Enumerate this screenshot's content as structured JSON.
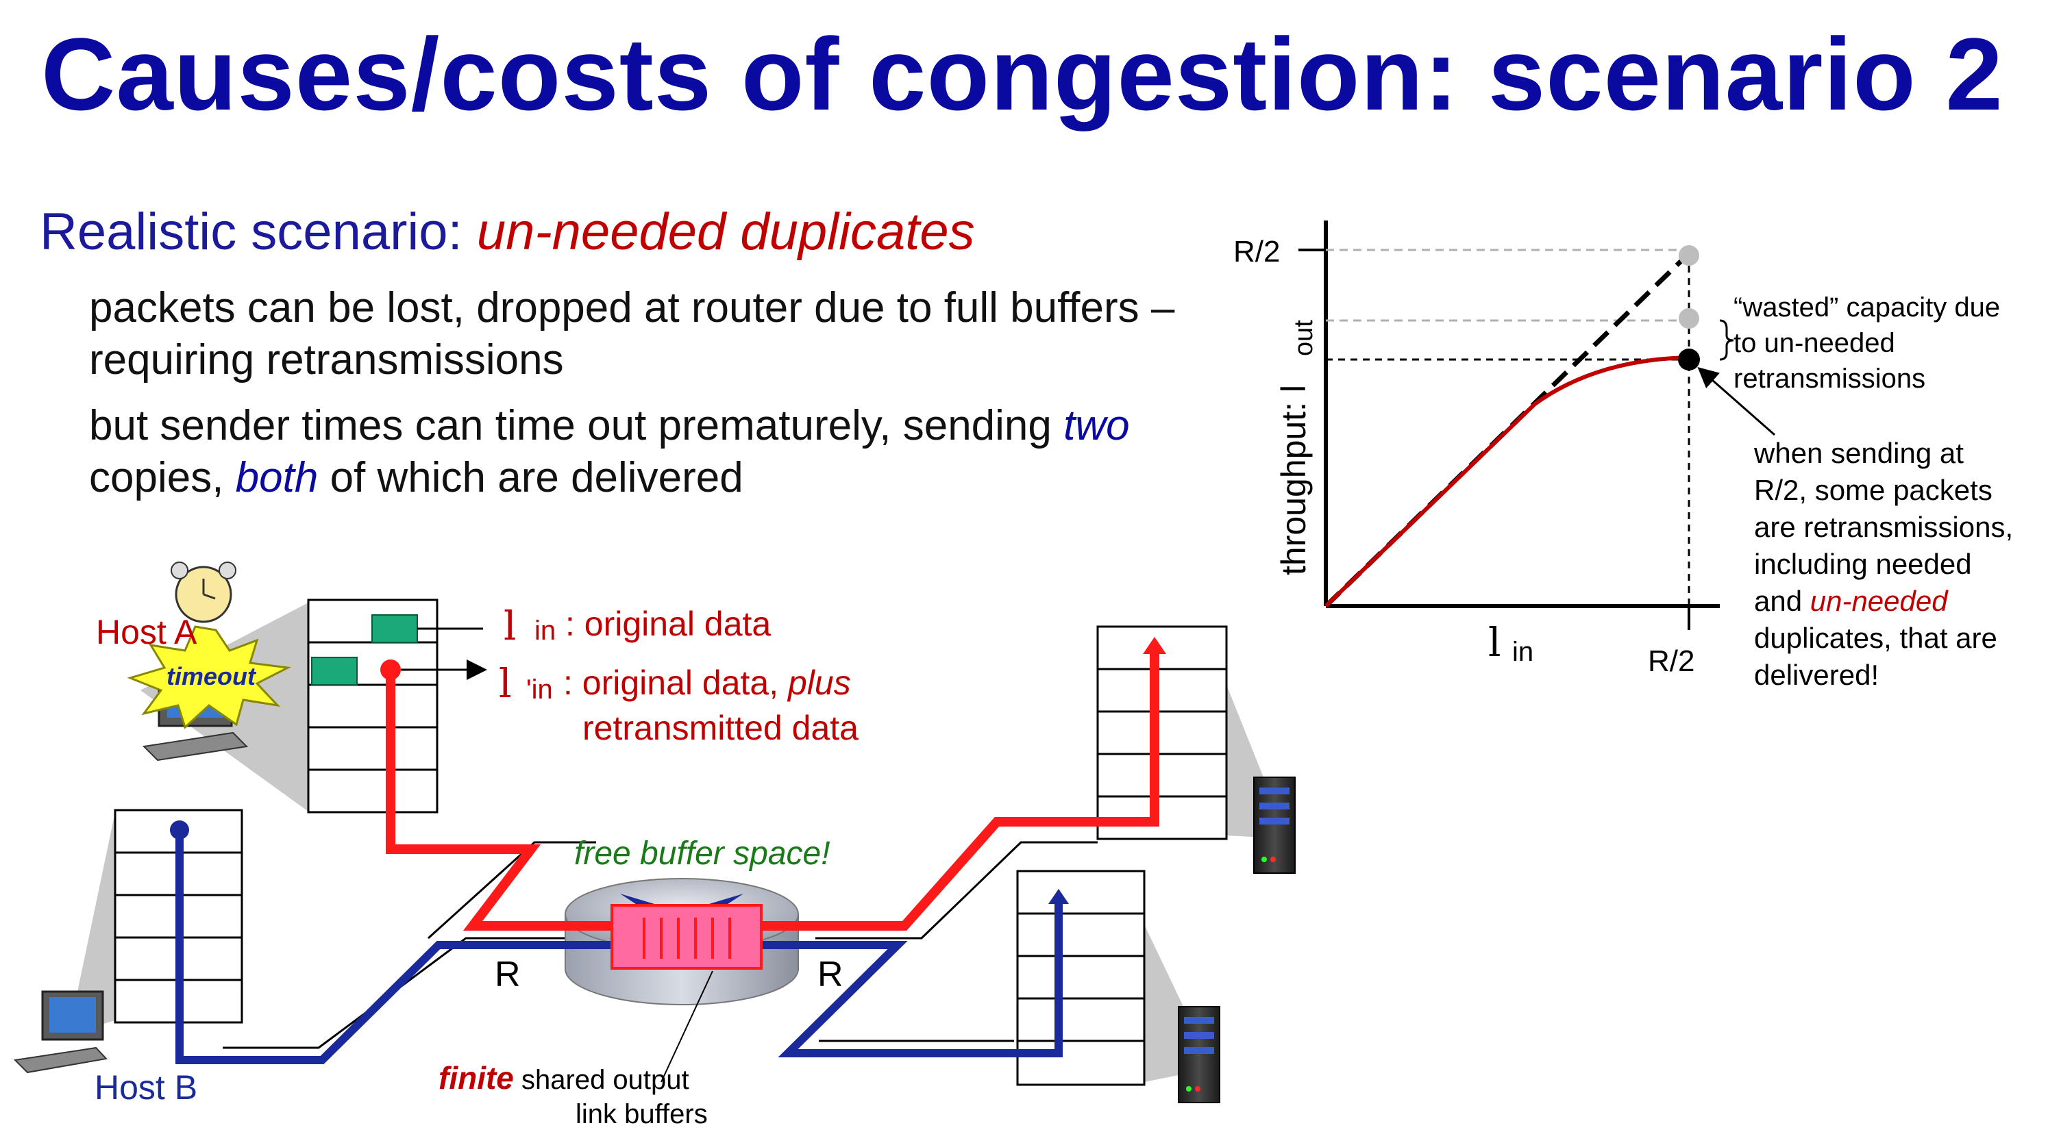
{
  "slide": {
    "title": "Causes/costs of congestion: scenario 2",
    "subtitle_prefix": "Realistic scenario: ",
    "subtitle_highlight": "un-needed duplicates",
    "bullet1": "packets can be lost, dropped at router due  to full buffers – requiring retransmissions",
    "bullet2_part1": "but sender times can time out prematurely, sending ",
    "bullet2_two": "two",
    "bullet2_part2": " copies, ",
    "bullet2_both": "both",
    "bullet2_part3": " of which are delivered"
  },
  "network": {
    "host_a_label": "Host A",
    "host_b_label": "Host B",
    "timeout_label": "timeout",
    "lambda_symbol": "l",
    "in_subscript": "in",
    "original_data": ": original data",
    "prime_in": "'in",
    "original_plus_prefix": ": original data, ",
    "original_plus_italic": "plus",
    "retransmitted": "retransmitted data",
    "free_buffer": "free buffer space!",
    "link_r_left": "R",
    "link_r_right": "R",
    "finite": "finite",
    "shared_output": " shared output",
    "link_buffers": "link buffers"
  },
  "graph": {
    "ylabel": "throughput: l",
    "ylabel_sub": "out",
    "xlabel": "l",
    "xlabel_sub": "in",
    "xtick": "R/2",
    "ytick": "R/2",
    "wasted_line1": "“wasted” capacity due",
    "wasted_line2": "to un-needed",
    "wasted_line3": "retransmissions",
    "note_line1": "when sending at",
    "note_line2": "R/2, some packets",
    "note_line3": "are retransmissions,",
    "note_line4": "including needed",
    "note_line5_prefix": "and ",
    "note_line5_red": "un-needed",
    "note_line6": "duplicates, that are",
    "note_line7": "delivered!"
  },
  "colors": {
    "title_blue": "#0a0aa0",
    "red": "#c00000",
    "flow_red": "#ff1a1a",
    "flow_blue": "#1a2a9a",
    "green": "#1a7a1a"
  }
}
